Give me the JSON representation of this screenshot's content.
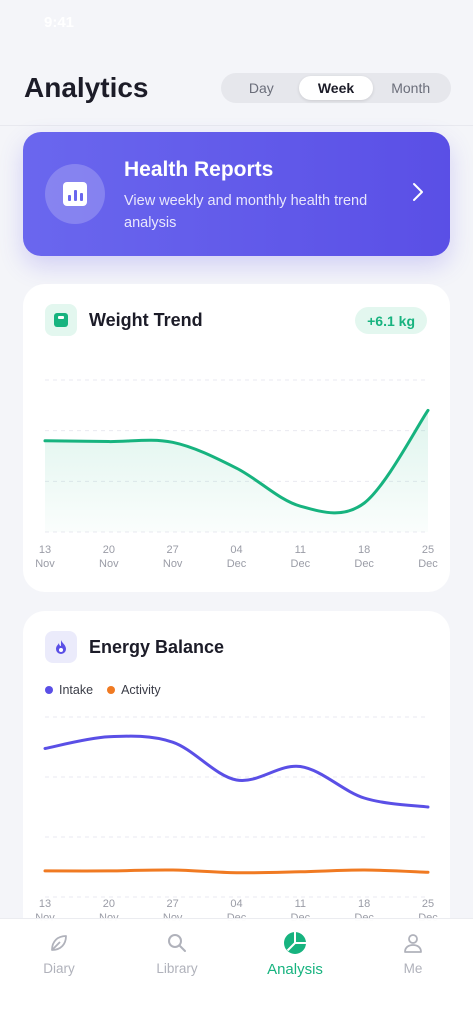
{
  "status_bar": {
    "time": "9:41",
    "icons": ""
  },
  "header": {
    "title": "Analytics",
    "segments": [
      {
        "label": "Day",
        "active": false
      },
      {
        "label": "Week",
        "active": true
      },
      {
        "label": "Month",
        "active": false
      }
    ]
  },
  "reports": {
    "title": "Health Reports",
    "subtitle": "View weekly and monthly health trend analysis",
    "icon": "bar-chart-icon"
  },
  "weight_card": {
    "title": "Weight Trend",
    "badge": "+6.1 kg",
    "icon": "scale-icon",
    "accent": "#17b37f"
  },
  "energy_card": {
    "title": "Energy Balance",
    "icon": "flame-icon",
    "accent": "#5a4fe6",
    "legend": [
      {
        "name": "Intake",
        "color": "#5a4fe6"
      },
      {
        "name": "Activity",
        "color": "#f07a22"
      }
    ]
  },
  "tabs": [
    {
      "label": "Diary",
      "icon": "leaf-icon",
      "active": false
    },
    {
      "label": "Library",
      "icon": "search-icon",
      "active": false
    },
    {
      "label": "Analysis",
      "icon": "pie-chart-icon",
      "active": true
    },
    {
      "label": "Me",
      "icon": "person-icon",
      "active": false
    }
  ],
  "chart_data": [
    {
      "type": "area",
      "categories": [
        [
          "13",
          "Nov"
        ],
        [
          "20",
          "Nov"
        ],
        [
          "27",
          "Nov"
        ],
        [
          "04",
          "Dec"
        ],
        [
          "11",
          "Dec"
        ],
        [
          "18",
          "Dec"
        ],
        [
          "25",
          "Dec"
        ]
      ],
      "values": [
        76.0,
        75.95,
        75.9,
        74.2,
        71.7,
        71.9,
        78.0
      ],
      "ylim": [
        70,
        80
      ],
      "title": "Weight Trend",
      "xlabel": "",
      "ylabel": "",
      "grid": true,
      "color": "#17b37f"
    },
    {
      "type": "line",
      "categories": [
        [
          "13",
          "Nov"
        ],
        [
          "20",
          "Nov"
        ],
        [
          "27",
          "Nov"
        ],
        [
          "04",
          "Dec"
        ],
        [
          "11",
          "Dec"
        ],
        [
          "18",
          "Dec"
        ],
        [
          "25",
          "Dec"
        ]
      ],
      "series": [
        {
          "name": "Intake",
          "color": "#5a4fe6",
          "values": [
            2650,
            2780,
            2720,
            2300,
            2450,
            2100,
            2000
          ]
        },
        {
          "name": "Activity",
          "color": "#f07a22",
          "values": [
            1290,
            1290,
            1300,
            1270,
            1280,
            1300,
            1275
          ]
        }
      ],
      "ylim": [
        1000,
        3000
      ],
      "title": "Energy Balance",
      "xlabel": "",
      "ylabel": "",
      "grid": true,
      "legend": "top-left"
    }
  ]
}
